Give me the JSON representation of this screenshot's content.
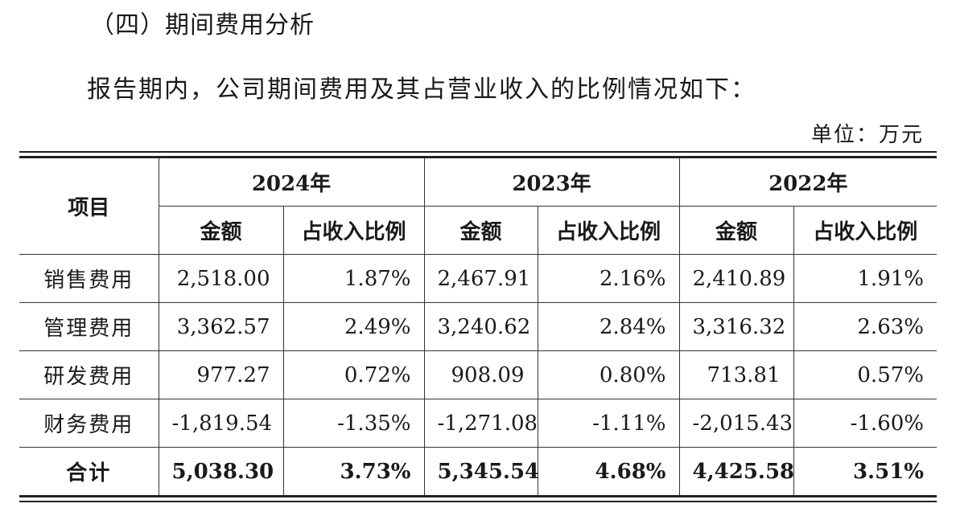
{
  "section_title": "（四）期间费用分析",
  "intro": "报告期内，公司期间费用及其占营业收入的比例情况如下：",
  "unit": "单位：万元",
  "table": {
    "item_header": "项目",
    "years": [
      {
        "label": "2024年",
        "amount_header": "金额",
        "ratio_header": "占收入比例"
      },
      {
        "label": "2023年",
        "amount_header": "金额",
        "ratio_header": "占收入比例"
      },
      {
        "label": "2022年",
        "amount_header": "金额",
        "ratio_header": "占收入比例"
      }
    ],
    "rows": [
      {
        "label": "销售费用",
        "cells": [
          "2,518.00",
          "1.87%",
          "2,467.91",
          "2.16%",
          "2,410.89",
          "1.91%"
        ]
      },
      {
        "label": "管理费用",
        "cells": [
          "3,362.57",
          "2.49%",
          "3,240.62",
          "2.84%",
          "3,316.32",
          "2.63%"
        ]
      },
      {
        "label": "研发费用",
        "cells": [
          "977.27",
          "0.72%",
          "908.09",
          "0.80%",
          "713.81",
          "0.57%"
        ]
      },
      {
        "label": "财务费用",
        "cells": [
          "-1,819.54",
          "-1.35%",
          "-1,271.08",
          "-1.11%",
          "-2,015.43",
          "-1.60%"
        ]
      }
    ],
    "total": {
      "label": "合计",
      "cells": [
        "5,038.30",
        "3.73%",
        "5,345.54",
        "4.68%",
        "4,425.58",
        "3.51%"
      ]
    }
  }
}
